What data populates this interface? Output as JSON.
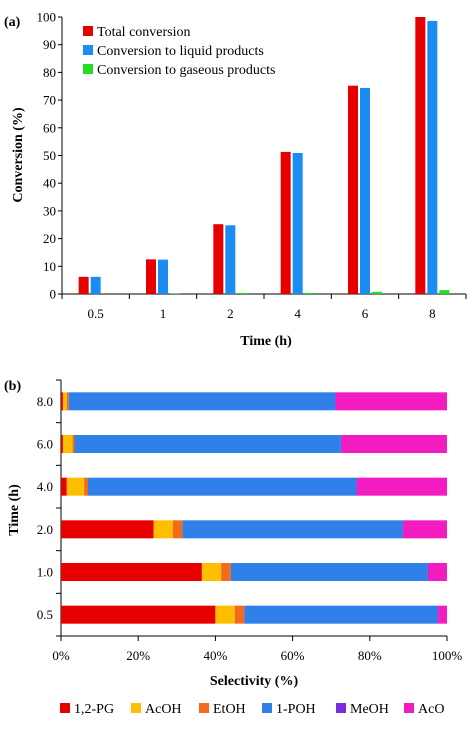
{
  "chart_data": [
    {
      "panel_label": "(a)",
      "type": "bar",
      "categories": [
        "0.5",
        "1",
        "2",
        "4",
        "6",
        "8"
      ],
      "xlabel": "Time (h)",
      "ylabel": "Conversion (%)",
      "ylim": [
        0,
        100
      ],
      "yticks": [
        0,
        10,
        20,
        30,
        40,
        50,
        60,
        70,
        80,
        90,
        100
      ],
      "grid": false,
      "legend_position": "top-left",
      "series": [
        {
          "name": "Total conversion",
          "color": "#e60000",
          "values": [
            6.2,
            12.5,
            25.2,
            51.3,
            75.2,
            100
          ]
        },
        {
          "name": "Conversion to liquid products",
          "color": "#1b8cf2",
          "values": [
            6.2,
            12.4,
            24.8,
            50.9,
            74.4,
            98.6
          ]
        },
        {
          "name": "Conversion to gaseous products",
          "color": "#22dd22",
          "values": [
            0,
            0.1,
            0.4,
            0.4,
            0.8,
            1.4
          ]
        }
      ]
    },
    {
      "panel_label": "(b)",
      "type": "bar",
      "orientation": "horizontal",
      "stacked": true,
      "categories": [
        "0.5",
        "1.0",
        "2.0",
        "4.0",
        "6.0",
        "8.0"
      ],
      "xlabel": "Selectivity (%)",
      "ylabel": "Time (h)",
      "xlim": [
        0,
        100
      ],
      "xticks": [
        "0%",
        "20%",
        "40%",
        "60%",
        "80%",
        "100%"
      ],
      "grid": false,
      "legend_position": "bottom",
      "series": [
        {
          "name": "1,2-PG",
          "color": "#e60000",
          "values": [
            40,
            36.5,
            24,
            1.5,
            0.5,
            0.5
          ]
        },
        {
          "name": "AcOH",
          "color": "#ffbf00",
          "values": [
            5,
            5,
            5,
            4.5,
            2.5,
            1.0
          ]
        },
        {
          "name": "EtOH",
          "color": "#f26a1b",
          "values": [
            2.5,
            2.5,
            2.5,
            1.0,
            0.5,
            0.5
          ]
        },
        {
          "name": "1-POH",
          "color": "#2f80e8",
          "values": [
            50,
            51.0,
            57.0,
            69.5,
            69.0,
            69.0
          ]
        },
        {
          "name": "MeOH",
          "color": "#7a2ce0",
          "values": [
            0.2,
            0.2,
            0.2,
            0.2,
            0.2,
            0.2
          ]
        },
        {
          "name": "AcO",
          "color": "#f21cc0",
          "values": [
            2.3,
            4.8,
            11.3,
            23.3,
            27.3,
            28.8
          ]
        }
      ]
    }
  ]
}
